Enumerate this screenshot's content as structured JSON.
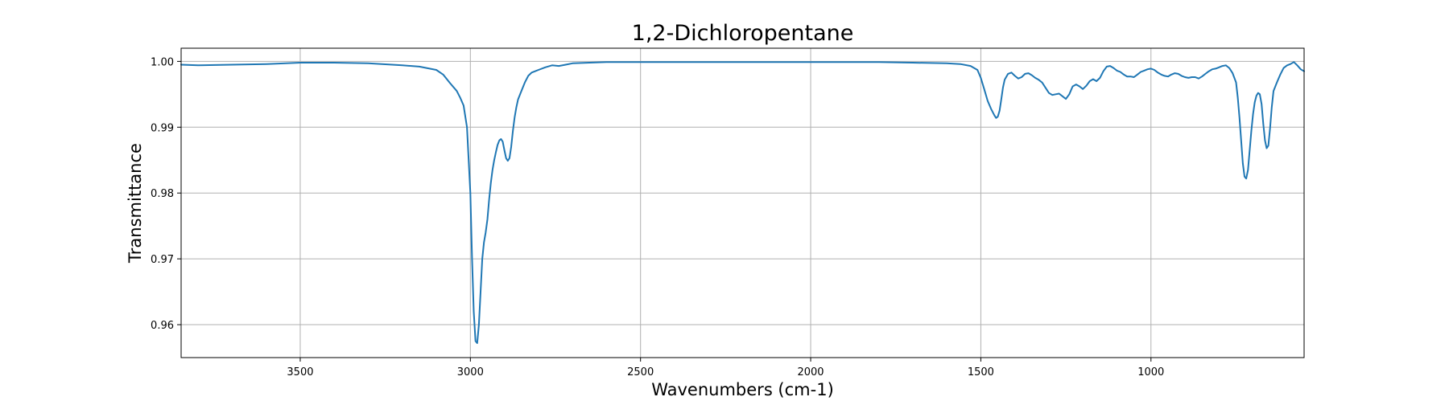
{
  "chart_data": {
    "type": "line",
    "title": "1,2-Dichloropentane",
    "xlabel": "Wavenumbers (cm-1)",
    "ylabel": "Transmittance",
    "xlim": [
      3850,
      550
    ],
    "ylim": [
      0.955,
      1.002
    ],
    "x_reversed": true,
    "grid": true,
    "x_ticks": [
      3500,
      3000,
      2500,
      2000,
      1500,
      1000
    ],
    "y_ticks": [
      0.96,
      0.97,
      0.98,
      0.99,
      1.0
    ],
    "x_tick_labels": [
      "3500",
      "3000",
      "2500",
      "2000",
      "1500",
      "1000"
    ],
    "y_tick_labels": [
      "0.96",
      "0.97",
      "0.98",
      "0.99",
      "1.00"
    ],
    "series": [
      {
        "color": "#1f77b4",
        "x": [
          3850,
          3800,
          3700,
          3600,
          3500,
          3400,
          3300,
          3200,
          3150,
          3100,
          3080,
          3060,
          3040,
          3030,
          3020,
          3010,
          3000,
          2995,
          2990,
          2985,
          2980,
          2975,
          2970,
          2965,
          2960,
          2955,
          2950,
          2945,
          2940,
          2935,
          2930,
          2925,
          2920,
          2915,
          2910,
          2905,
          2900,
          2895,
          2890,
          2885,
          2880,
          2875,
          2870,
          2865,
          2860,
          2850,
          2840,
          2830,
          2820,
          2810,
          2800,
          2780,
          2760,
          2740,
          2720,
          2700,
          2650,
          2600,
          2500,
          2400,
          2300,
          2200,
          2100,
          2000,
          1900,
          1800,
          1700,
          1600,
          1560,
          1530,
          1510,
          1500,
          1490,
          1480,
          1470,
          1460,
          1455,
          1450,
          1445,
          1440,
          1435,
          1430,
          1420,
          1410,
          1400,
          1390,
          1380,
          1370,
          1360,
          1350,
          1340,
          1330,
          1320,
          1310,
          1300,
          1290,
          1280,
          1270,
          1260,
          1250,
          1240,
          1230,
          1220,
          1210,
          1200,
          1190,
          1180,
          1170,
          1160,
          1150,
          1140,
          1130,
          1120,
          1110,
          1100,
          1090,
          1080,
          1070,
          1060,
          1050,
          1040,
          1030,
          1020,
          1010,
          1000,
          990,
          980,
          970,
          960,
          950,
          940,
          930,
          920,
          910,
          900,
          890,
          880,
          870,
          860,
          850,
          840,
          830,
          820,
          810,
          800,
          790,
          780,
          770,
          760,
          750,
          745,
          740,
          735,
          730,
          725,
          720,
          715,
          710,
          705,
          700,
          695,
          690,
          685,
          680,
          675,
          670,
          665,
          660,
          655,
          650,
          645,
          640,
          630,
          620,
          610,
          600,
          590,
          580,
          570,
          560,
          550
        ],
        "y": [
          0.9995,
          0.9994,
          0.9995,
          0.9996,
          0.9998,
          0.9998,
          0.9997,
          0.9994,
          0.9992,
          0.9987,
          0.998,
          0.9967,
          0.9955,
          0.9945,
          0.9933,
          0.99,
          0.98,
          0.97,
          0.962,
          0.9575,
          0.9572,
          0.96,
          0.965,
          0.97,
          0.9725,
          0.974,
          0.976,
          0.979,
          0.9815,
          0.9835,
          0.985,
          0.9862,
          0.9873,
          0.988,
          0.9882,
          0.9878,
          0.9865,
          0.9853,
          0.9849,
          0.9853,
          0.987,
          0.9895,
          0.9915,
          0.993,
          0.9942,
          0.9955,
          0.9968,
          0.9978,
          0.9983,
          0.9985,
          0.9987,
          0.9991,
          0.9994,
          0.9993,
          0.9995,
          0.9997,
          0.9998,
          0.9999,
          0.9999,
          0.9999,
          0.9999,
          0.9999,
          0.9999,
          0.9999,
          0.9999,
          0.9999,
          0.9998,
          0.9997,
          0.9996,
          0.9993,
          0.9987,
          0.9975,
          0.9958,
          0.994,
          0.9928,
          0.9918,
          0.9914,
          0.9916,
          0.9925,
          0.9942,
          0.996,
          0.9972,
          0.9981,
          0.9983,
          0.9978,
          0.9974,
          0.9976,
          0.9981,
          0.9982,
          0.9979,
          0.9975,
          0.9972,
          0.9968,
          0.996,
          0.9952,
          0.9949,
          0.995,
          0.9951,
          0.9947,
          0.9943,
          0.995,
          0.9962,
          0.9965,
          0.9962,
          0.9958,
          0.9963,
          0.997,
          0.9973,
          0.997,
          0.9975,
          0.9985,
          0.9992,
          0.9993,
          0.999,
          0.9986,
          0.9984,
          0.998,
          0.9977,
          0.9977,
          0.9976,
          0.998,
          0.9984,
          0.9986,
          0.9988,
          0.9989,
          0.9987,
          0.9983,
          0.998,
          0.9978,
          0.9977,
          0.998,
          0.9982,
          0.9981,
          0.9978,
          0.9976,
          0.9975,
          0.9976,
          0.9976,
          0.9974,
          0.9977,
          0.9981,
          0.9985,
          0.9988,
          0.9989,
          0.9991,
          0.9993,
          0.9994,
          0.999,
          0.9982,
          0.9968,
          0.9945,
          0.9915,
          0.988,
          0.9845,
          0.9825,
          0.9822,
          0.9835,
          0.9865,
          0.9895,
          0.992,
          0.9938,
          0.9948,
          0.9952,
          0.995,
          0.9935,
          0.9905,
          0.988,
          0.9868,
          0.9872,
          0.9898,
          0.993,
          0.9955,
          0.9968,
          0.998,
          0.999,
          0.9994,
          0.9996,
          0.9999,
          0.9994,
          0.9988,
          0.9985
        ]
      }
    ]
  }
}
